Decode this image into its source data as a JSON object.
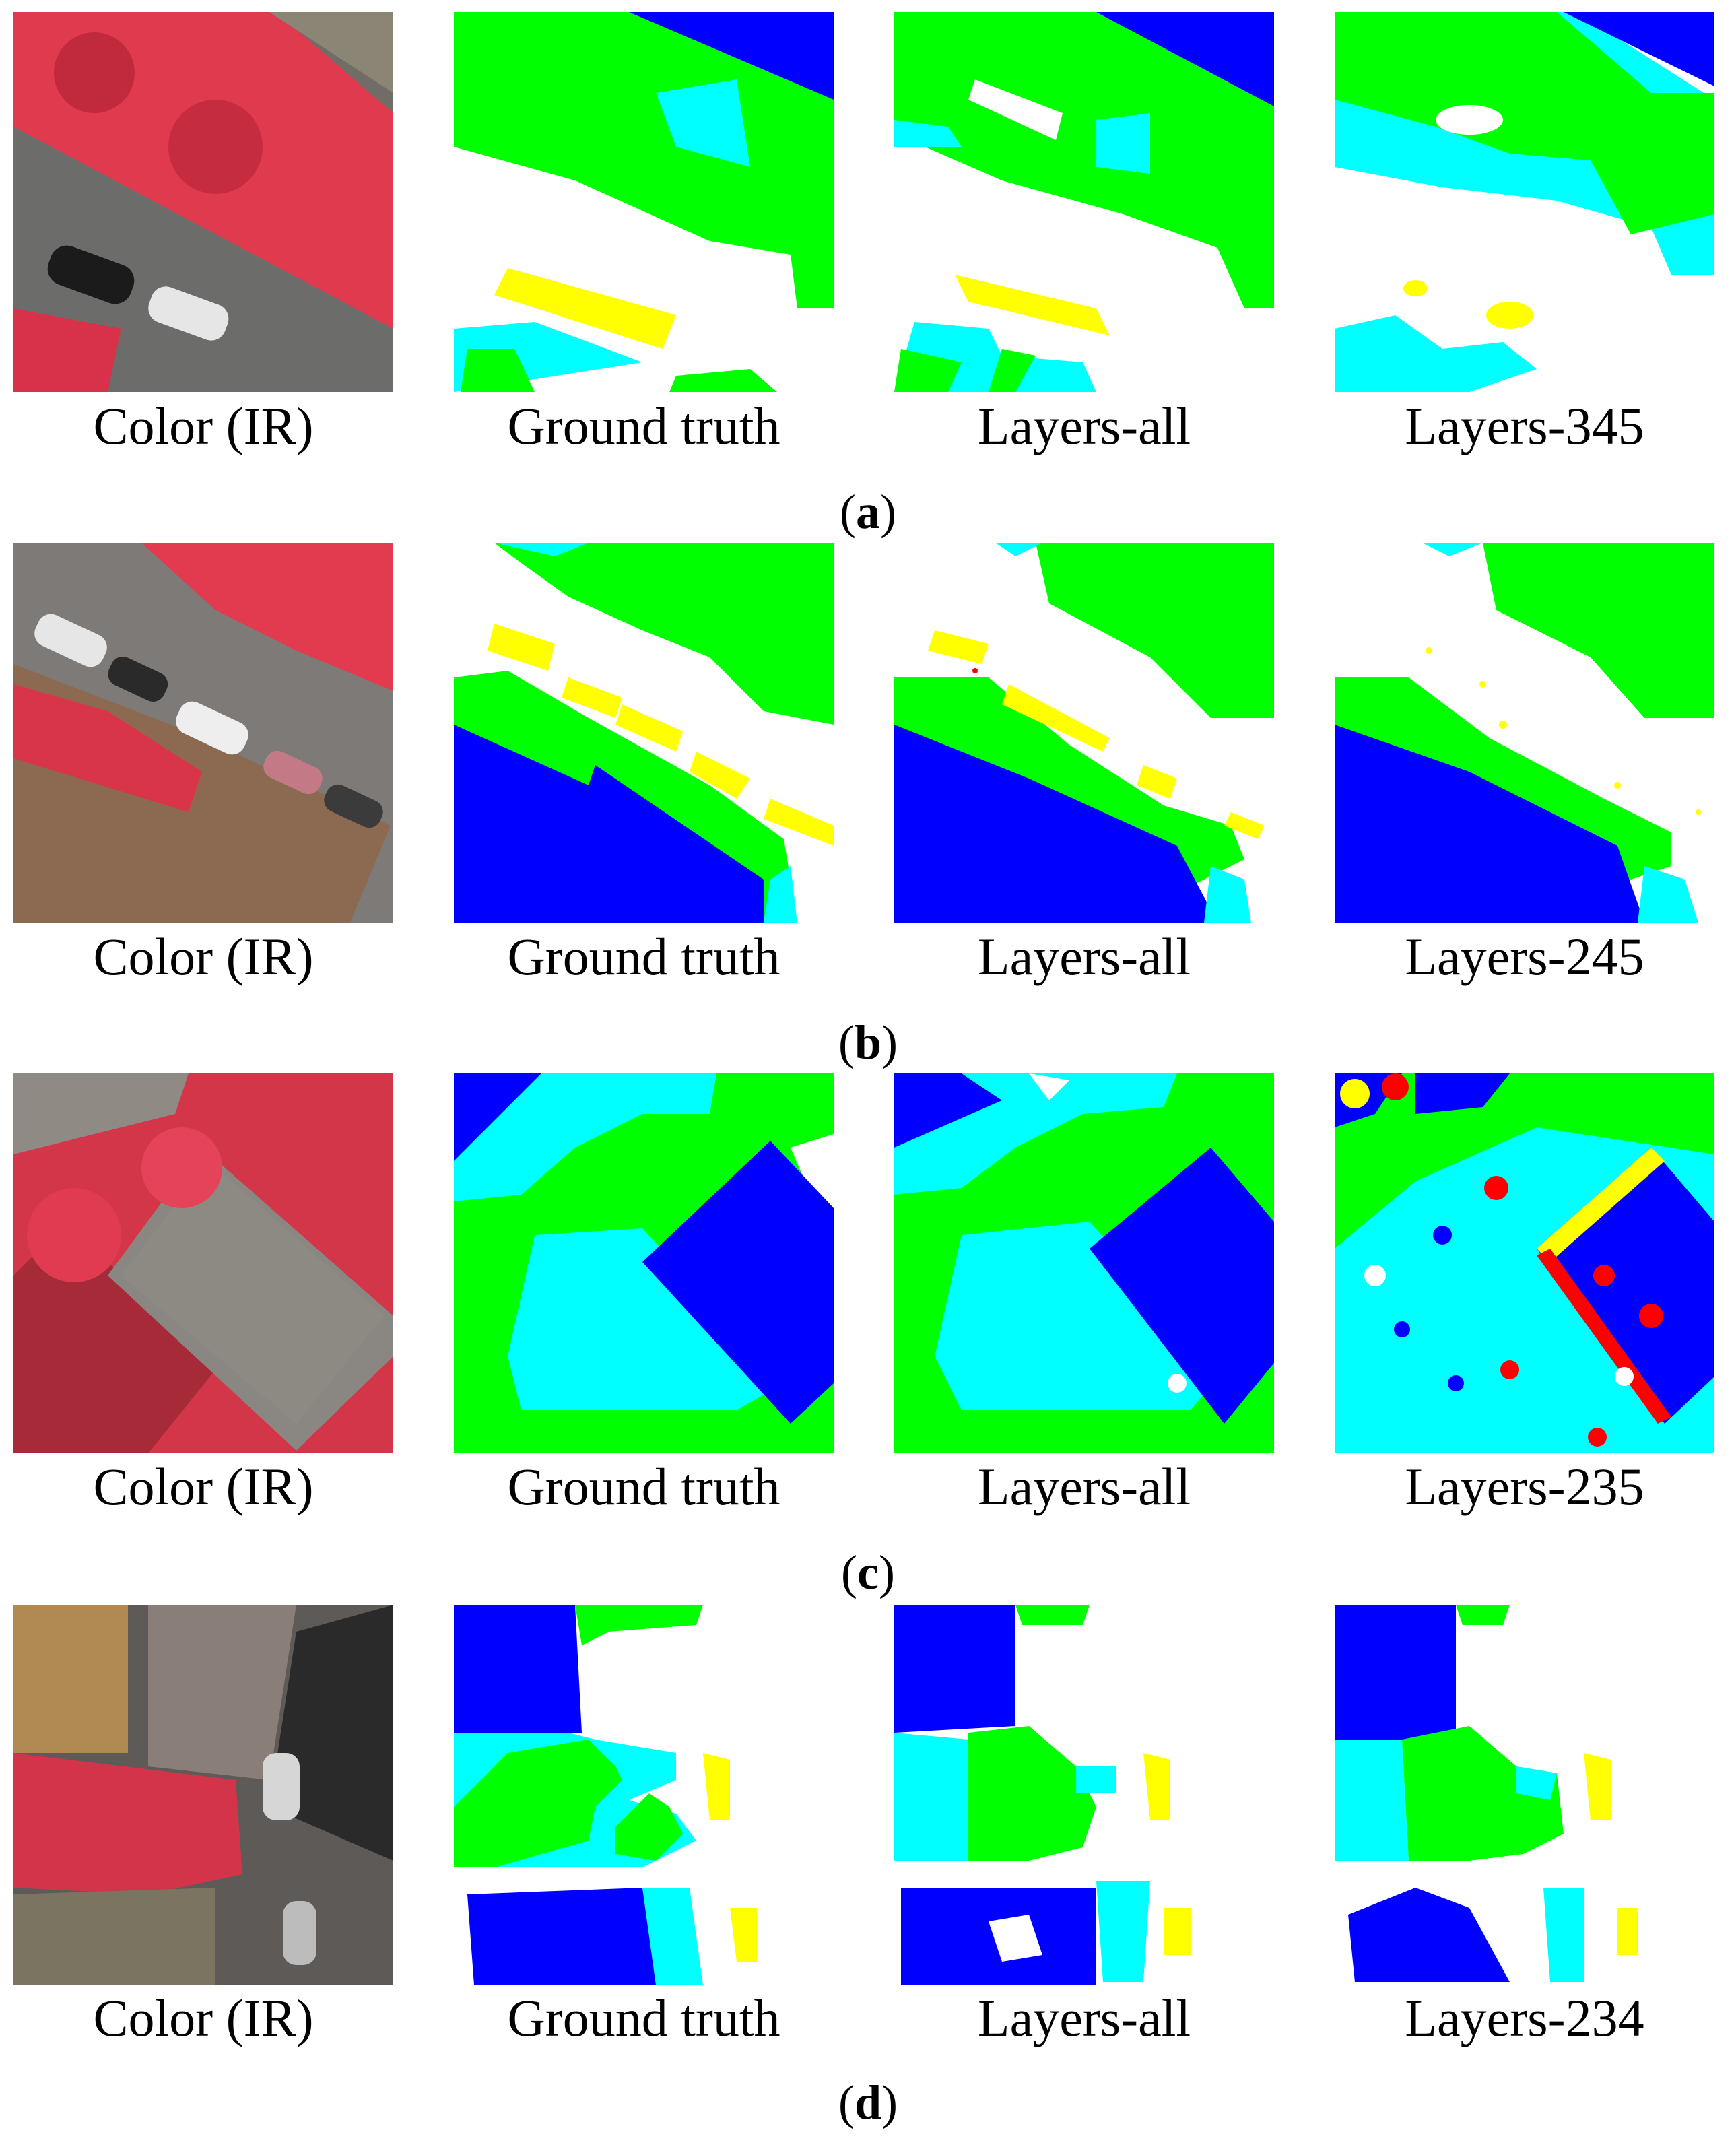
{
  "colors": {
    "impervious": "#ffffff",
    "building": "#0000ff",
    "low_vegetation": "#00ffff",
    "tree": "#00ff00",
    "car": "#ffff00",
    "clutter": "#ff0000",
    "ir_vegetation": "#e8324a",
    "ir_road": "#7a7a78"
  },
  "rows": [
    {
      "id": "a",
      "label_open": "(",
      "label_letter": "a",
      "label_close": ")",
      "captions": [
        "Color (IR)",
        "Ground truth",
        "Layers-all",
        "Layers-345"
      ]
    },
    {
      "id": "b",
      "label_open": "(",
      "label_letter": "b",
      "label_close": ")",
      "captions": [
        "Color (IR)",
        "Ground truth",
        "Layers-all",
        "Layers-245"
      ]
    },
    {
      "id": "c",
      "label_open": "(",
      "label_letter": "c",
      "label_close": ")",
      "captions": [
        "Color (IR)",
        "Ground truth",
        "Layers-all",
        "Layers-235"
      ]
    },
    {
      "id": "d",
      "label_open": "(",
      "label_letter": "d",
      "label_close": ")",
      "captions": [
        "Color (IR)",
        "Ground truth",
        "Layers-all",
        "Layers-234"
      ]
    }
  ]
}
